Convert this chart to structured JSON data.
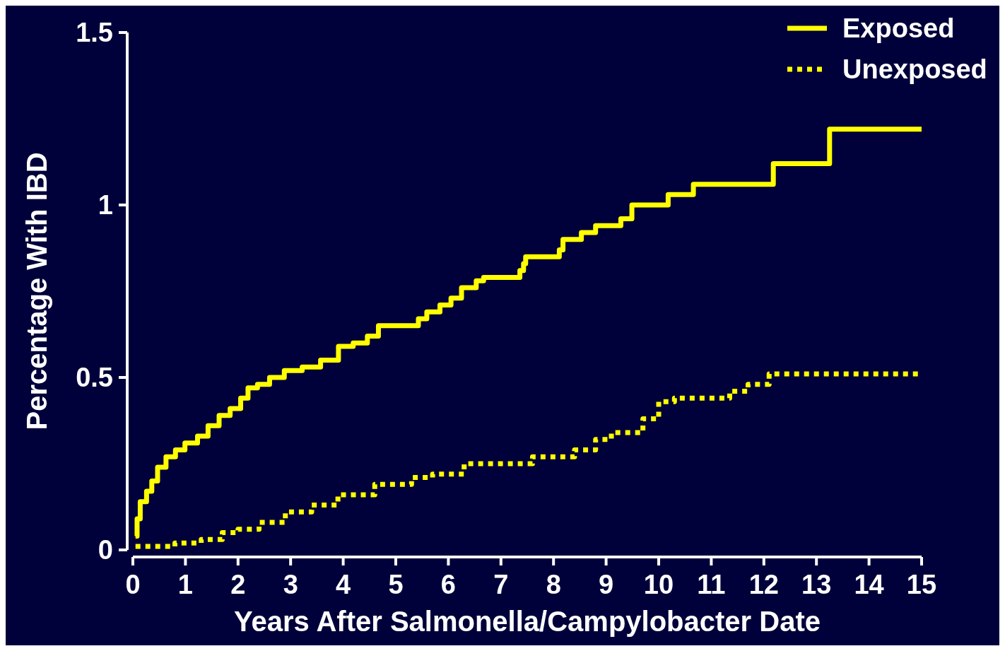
{
  "chart_data": {
    "type": "step",
    "xlabel": "Years After Salmonella/Campylobacter Date",
    "ylabel": "Percentage With IBD",
    "xlim": [
      0,
      15
    ],
    "xticks": [
      0,
      1,
      2,
      3,
      4,
      5,
      6,
      7,
      8,
      9,
      10,
      11,
      12,
      13,
      14,
      15
    ],
    "ylim": [
      0,
      1.5
    ],
    "yticks": [
      0,
      0.5,
      1,
      1.5
    ],
    "legend": "top right",
    "grid": false,
    "series": [
      {
        "name": "Exposed",
        "color": "#ffff00",
        "line_style": "solid",
        "x": [
          0.05,
          0.08,
          0.14,
          0.26,
          0.36,
          0.47,
          0.63,
          0.81,
          0.99,
          1.23,
          1.43,
          1.64,
          1.85,
          2.05,
          2.19,
          2.37,
          2.6,
          2.88,
          3.22,
          3.57,
          3.91,
          4.19,
          4.46,
          4.67,
          5.43,
          5.59,
          5.84,
          6.05,
          6.25,
          6.53,
          6.67,
          7.36,
          7.43,
          7.47,
          8.11,
          8.18,
          8.53,
          8.8,
          9.28,
          9.49,
          10.18,
          10.66,
          12.18,
          13.25,
          15
        ],
        "values": [
          0.04,
          0.09,
          0.14,
          0.17,
          0.2,
          0.24,
          0.27,
          0.29,
          0.31,
          0.33,
          0.36,
          0.39,
          0.41,
          0.44,
          0.47,
          0.48,
          0.5,
          0.52,
          0.53,
          0.55,
          0.59,
          0.6,
          0.62,
          0.65,
          0.67,
          0.69,
          0.71,
          0.73,
          0.76,
          0.78,
          0.79,
          0.81,
          0.83,
          0.85,
          0.87,
          0.9,
          0.92,
          0.94,
          0.96,
          1.0,
          1.03,
          1.06,
          1.12,
          1.22,
          1.22
        ]
      },
      {
        "name": "Unexposed",
        "color": "#ffff00",
        "line_style": "dotted",
        "x": [
          0.05,
          0.8,
          1.3,
          1.7,
          2.0,
          2.4,
          2.9,
          3.4,
          3.9,
          4.6,
          5.3,
          5.7,
          6.3,
          7.6,
          8.4,
          8.8,
          9.1,
          9.7,
          10.0,
          10.3,
          11.35,
          11.7,
          12.1,
          15
        ],
        "values": [
          0.01,
          0.02,
          0.03,
          0.05,
          0.06,
          0.08,
          0.11,
          0.13,
          0.16,
          0.19,
          0.21,
          0.22,
          0.25,
          0.27,
          0.29,
          0.32,
          0.34,
          0.38,
          0.43,
          0.44,
          0.46,
          0.48,
          0.51,
          0.51
        ]
      }
    ]
  }
}
